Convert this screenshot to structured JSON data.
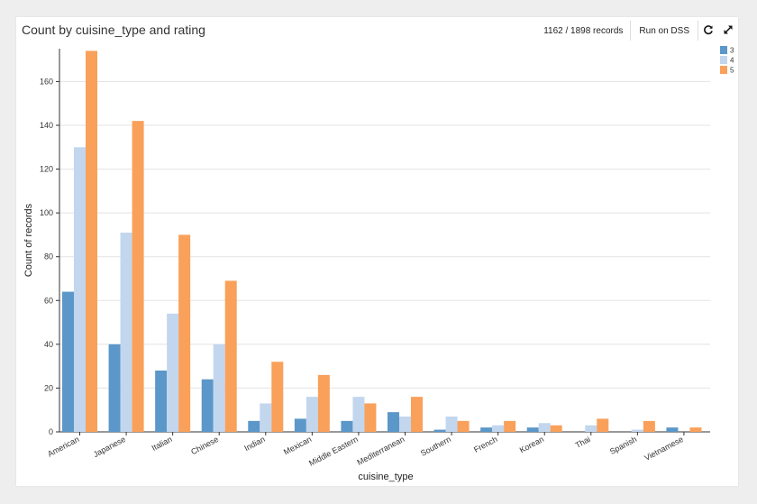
{
  "header": {
    "title": "Count by cuisine_type and rating",
    "records": "1162 / 1898 records",
    "run_label": "Run on DSS"
  },
  "icons": {
    "refresh": "refresh-icon",
    "expand": "expand-icon"
  },
  "chart_data": {
    "type": "bar",
    "title": "Count by cuisine_type and rating",
    "xlabel": "cuisine_type",
    "ylabel": "Count of records",
    "ylim": [
      0,
      175
    ],
    "yticks": [
      0,
      20,
      40,
      60,
      80,
      100,
      120,
      140,
      160
    ],
    "grid": true,
    "legend_position": "top-right",
    "categories": [
      "American",
      "Japanese",
      "Italian",
      "Chinese",
      "Indian",
      "Mexican",
      "Middle Eastern",
      "Mediterranean",
      "Southern",
      "French",
      "Korean",
      "Thai",
      "Spanish",
      "Vietnamese"
    ],
    "series": [
      {
        "name": "3",
        "color": "#5b97c8",
        "values": [
          64,
          40,
          28,
          24,
          5,
          6,
          5,
          9,
          1,
          2,
          2,
          0,
          0,
          2
        ]
      },
      {
        "name": "4",
        "color": "#c2d6ee",
        "values": [
          130,
          91,
          54,
          40,
          13,
          16,
          16,
          7,
          7,
          3,
          4,
          3,
          1,
          0
        ]
      },
      {
        "name": "5",
        "color": "#f9a05a",
        "values": [
          174,
          142,
          90,
          69,
          32,
          26,
          13,
          16,
          5,
          5,
          3,
          6,
          5,
          2
        ]
      }
    ]
  }
}
